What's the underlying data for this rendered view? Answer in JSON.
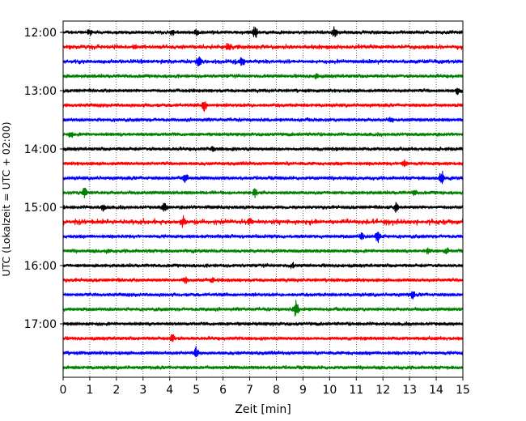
{
  "chart_data": {
    "type": "line",
    "title": "",
    "xlabel": "Zeit  [min]",
    "ylabel": "UTC (Lokalzeit = UTC + 02:00)",
    "xlim": [
      0,
      15
    ],
    "x_ticks": [
      0,
      1,
      2,
      3,
      4,
      5,
      6,
      7,
      8,
      9,
      10,
      11,
      12,
      13,
      14,
      15
    ],
    "y_tick_labels": [
      "12:00",
      "13:00",
      "14:00",
      "15:00",
      "16:00",
      "17:00"
    ],
    "grid": "vertical dotted",
    "colors": [
      "#000000",
      "#ff0000",
      "#0000ff",
      "#008000"
    ],
    "trace_interval_min": 15,
    "traces": [
      {
        "start": "12:00",
        "color": "#000000",
        "noise": 1.0,
        "events": [
          [
            1.0,
            4
          ],
          [
            4.1,
            3
          ],
          [
            5.0,
            4
          ],
          [
            7.2,
            7
          ],
          [
            10.2,
            6
          ]
        ]
      },
      {
        "start": "12:15",
        "color": "#ff0000",
        "noise": 1.3,
        "events": [
          [
            2.7,
            3
          ],
          [
            6.2,
            4
          ]
        ]
      },
      {
        "start": "12:30",
        "color": "#0000ff",
        "noise": 1.3,
        "events": [
          [
            5.1,
            6
          ],
          [
            6.7,
            5
          ]
        ]
      },
      {
        "start": "12:45",
        "color": "#008000",
        "noise": 1.0,
        "events": [
          [
            9.5,
            3
          ]
        ]
      },
      {
        "start": "13:00",
        "color": "#000000",
        "noise": 1.0,
        "events": [
          [
            14.8,
            4
          ]
        ]
      },
      {
        "start": "13:15",
        "color": "#ff0000",
        "noise": 1.0,
        "events": [
          [
            5.3,
            7
          ]
        ]
      },
      {
        "start": "13:30",
        "color": "#0000ff",
        "noise": 1.0,
        "events": [
          [
            12.3,
            3
          ]
        ]
      },
      {
        "start": "13:45",
        "color": "#008000",
        "noise": 1.0,
        "events": [
          [
            0.3,
            3
          ]
        ]
      },
      {
        "start": "14:00",
        "color": "#000000",
        "noise": 1.0,
        "events": [
          [
            5.6,
            3
          ]
        ]
      },
      {
        "start": "14:15",
        "color": "#ff0000",
        "noise": 1.0,
        "events": [
          [
            12.8,
            4
          ]
        ]
      },
      {
        "start": "14:30",
        "color": "#0000ff",
        "noise": 1.0,
        "events": [
          [
            4.6,
            6
          ],
          [
            14.2,
            8
          ]
        ]
      },
      {
        "start": "14:45",
        "color": "#008000",
        "noise": 1.0,
        "events": [
          [
            0.8,
            7
          ],
          [
            7.2,
            5
          ],
          [
            13.2,
            3
          ]
        ]
      },
      {
        "start": "15:00",
        "color": "#000000",
        "noise": 1.0,
        "events": [
          [
            1.5,
            4
          ],
          [
            3.8,
            6
          ],
          [
            12.5,
            6
          ]
        ]
      },
      {
        "start": "15:15",
        "color": "#ff0000",
        "noise": 1.6,
        "events": [
          [
            4.5,
            4
          ],
          [
            7.0,
            3
          ]
        ]
      },
      {
        "start": "15:30",
        "color": "#0000ff",
        "noise": 1.0,
        "events": [
          [
            11.8,
            8
          ],
          [
            11.2,
            4
          ]
        ]
      },
      {
        "start": "15:45",
        "color": "#008000",
        "noise": 1.0,
        "events": [
          [
            1.7,
            3
          ],
          [
            13.7,
            4
          ],
          [
            14.4,
            3
          ]
        ]
      },
      {
        "start": "16:00",
        "color": "#000000",
        "noise": 1.0,
        "events": [
          [
            8.6,
            3
          ]
        ]
      },
      {
        "start": "16:15",
        "color": "#ff0000",
        "noise": 1.0,
        "events": [
          [
            4.6,
            4
          ],
          [
            5.6,
            3
          ]
        ]
      },
      {
        "start": "16:30",
        "color": "#0000ff",
        "noise": 1.0,
        "events": [
          [
            13.1,
            4
          ]
        ]
      },
      {
        "start": "16:45",
        "color": "#008000",
        "noise": 1.0,
        "events": [
          [
            8.75,
            11
          ]
        ]
      },
      {
        "start": "17:00",
        "color": "#000000",
        "noise": 1.0,
        "events": []
      },
      {
        "start": "17:15",
        "color": "#ff0000",
        "noise": 1.0,
        "events": [
          [
            4.1,
            4
          ]
        ]
      },
      {
        "start": "17:30",
        "color": "#0000ff",
        "noise": 1.0,
        "events": [
          [
            5.0,
            6
          ]
        ]
      },
      {
        "start": "17:45",
        "color": "#008000",
        "noise": 1.0,
        "events": []
      }
    ]
  }
}
